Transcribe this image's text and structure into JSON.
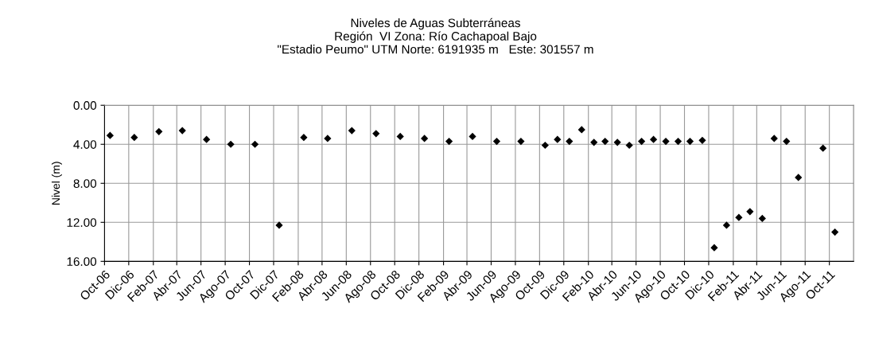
{
  "chart_data": {
    "type": "scatter",
    "title": "Niveles de Aguas Subterráneas\nRegión  VI Zona: Río Cachapoal Bajo\n\"Estadio Peumo\" UTM Norte: 6191935 m   Este: 301557 m",
    "ylabel": "Nivel (m)",
    "x": [
      "2006-10-15",
      "2006-12-15",
      "2007-02-15",
      "2007-04-15",
      "2007-06-15",
      "2007-08-15",
      "2007-10-15",
      "2007-12-15",
      "2008-02-15",
      "2008-04-15",
      "2008-06-15",
      "2008-08-15",
      "2008-10-15",
      "2008-12-15",
      "2009-02-15",
      "2009-04-15",
      "2009-06-15",
      "2009-08-15",
      "2009-10-15",
      "2009-11-15",
      "2009-12-15",
      "2010-01-15",
      "2010-02-15",
      "2010-03-15",
      "2010-04-15",
      "2010-05-15",
      "2010-06-15",
      "2010-07-15",
      "2010-08-15",
      "2010-09-15",
      "2010-10-15",
      "2010-11-15",
      "2010-12-15",
      "2011-01-15",
      "2011-02-15",
      "2011-03-15",
      "2011-04-15",
      "2011-05-15",
      "2011-06-15",
      "2011-07-15",
      "2011-09-15",
      "2011-10-15"
    ],
    "series": [
      {
        "color": "#000000",
        "values": [
          3.1,
          3.3,
          2.7,
          2.6,
          3.5,
          4.0,
          4.0,
          12.3,
          3.3,
          3.4,
          2.6,
          2.9,
          3.2,
          3.4,
          3.7,
          3.2,
          3.7,
          3.7,
          4.1,
          3.5,
          3.7,
          2.5,
          3.8,
          3.7,
          3.8,
          4.1,
          3.7,
          3.5,
          3.7,
          3.7,
          3.7,
          3.6,
          14.6,
          12.3,
          11.5,
          10.9,
          11.6,
          3.4,
          3.7,
          7.4,
          4.4,
          13.0
        ]
      }
    ],
    "marker": "diamond",
    "grid": true,
    "xlim": [
      "2006-10-01",
      "2011-12-01"
    ],
    "xticks": [
      {
        "value": "2006-10-01",
        "label": "Oct-06"
      },
      {
        "value": "2006-12-01",
        "label": "Dic-06"
      },
      {
        "value": "2007-02-01",
        "label": "Feb-07"
      },
      {
        "value": "2007-04-01",
        "label": "Abr-07"
      },
      {
        "value": "2007-06-01",
        "label": "Jun-07"
      },
      {
        "value": "2007-08-01",
        "label": "Ago-07"
      },
      {
        "value": "2007-10-01",
        "label": "Oct-07"
      },
      {
        "value": "2007-12-01",
        "label": "Dic-07"
      },
      {
        "value": "2008-02-01",
        "label": "Feb-08"
      },
      {
        "value": "2008-04-01",
        "label": "Abr-08"
      },
      {
        "value": "2008-06-01",
        "label": "Jun-08"
      },
      {
        "value": "2008-08-01",
        "label": "Ago-08"
      },
      {
        "value": "2008-10-01",
        "label": "Oct-08"
      },
      {
        "value": "2008-12-01",
        "label": "Dic-08"
      },
      {
        "value": "2009-02-01",
        "label": "Feb-09"
      },
      {
        "value": "2009-04-01",
        "label": "Abr-09"
      },
      {
        "value": "2009-06-01",
        "label": "Jun-09"
      },
      {
        "value": "2009-08-01",
        "label": "Ago-09"
      },
      {
        "value": "2009-10-01",
        "label": "Oct-09"
      },
      {
        "value": "2009-12-01",
        "label": "Dic-09"
      },
      {
        "value": "2010-02-01",
        "label": "Feb-10"
      },
      {
        "value": "2010-04-01",
        "label": "Abr-10"
      },
      {
        "value": "2010-06-01",
        "label": "Jun-10"
      },
      {
        "value": "2010-08-01",
        "label": "Ago-10"
      },
      {
        "value": "2010-10-01",
        "label": "Oct-10"
      },
      {
        "value": "2010-12-01",
        "label": "Dic-10"
      },
      {
        "value": "2011-02-01",
        "label": "Feb-11"
      },
      {
        "value": "2011-04-01",
        "label": "Abr-11"
      },
      {
        "value": "2011-06-01",
        "label": "Jun-11"
      },
      {
        "value": "2011-08-01",
        "label": "Ago-11"
      },
      {
        "value": "2011-10-01",
        "label": "Oct-11"
      }
    ],
    "ylim": [
      16,
      0
    ],
    "yticks": [
      {
        "value": 0,
        "label": "0.00"
      },
      {
        "value": 4,
        "label": "4.00"
      },
      {
        "value": 8,
        "label": "8.00"
      },
      {
        "value": 12,
        "label": "12.00"
      },
      {
        "value": 16,
        "label": "16.00"
      }
    ]
  }
}
